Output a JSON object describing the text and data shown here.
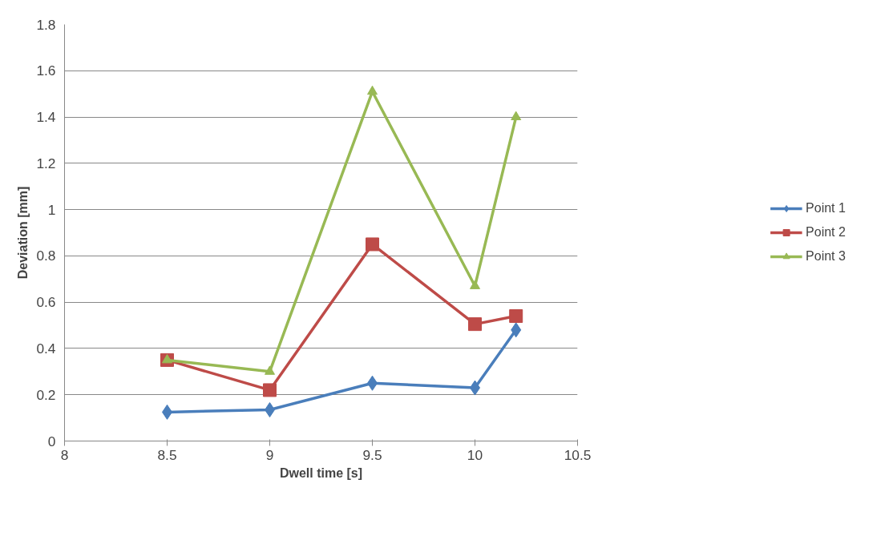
{
  "chart_data": {
    "type": "line",
    "xlabel": "Dwell time [s]",
    "ylabel": "Deviation [mm]",
    "x": [
      8.5,
      9,
      9.5,
      10,
      10.2
    ],
    "series": [
      {
        "name": "Point 1",
        "color": "#4a7ebb",
        "marker": "diamond",
        "values": [
          0.125,
          0.135,
          0.25,
          0.23,
          0.48
        ]
      },
      {
        "name": "Point 2",
        "color": "#be4b48",
        "marker": "square",
        "values": [
          0.35,
          0.22,
          0.85,
          0.505,
          0.54
        ]
      },
      {
        "name": "Point 3",
        "color": "#98b954",
        "marker": "triangle",
        "values": [
          0.35,
          0.3,
          1.51,
          0.67,
          1.4
        ]
      }
    ],
    "xlim": [
      8,
      10.5
    ],
    "xticks": [
      8,
      8.5,
      9,
      9.5,
      10,
      10.5
    ],
    "ylim": [
      0,
      1.8
    ],
    "yticks": [
      0,
      {
        "value": 0.2,
        "label": "0.2"
      },
      {
        "value": 0.4,
        "label": "0.4"
      },
      {
        "value": 0.6,
        "label": "0.6"
      },
      {
        "value": 0.8,
        "label": "0.8"
      },
      1,
      {
        "value": 1.2,
        "label": "1.2"
      },
      {
        "value": 1.4,
        "label": "1.4"
      },
      {
        "value": 1.6,
        "label": "1.6"
      },
      {
        "value": 1.8,
        "label": "1.8"
      }
    ],
    "grid": "y",
    "legend": "right",
    "line_style": "solid"
  }
}
